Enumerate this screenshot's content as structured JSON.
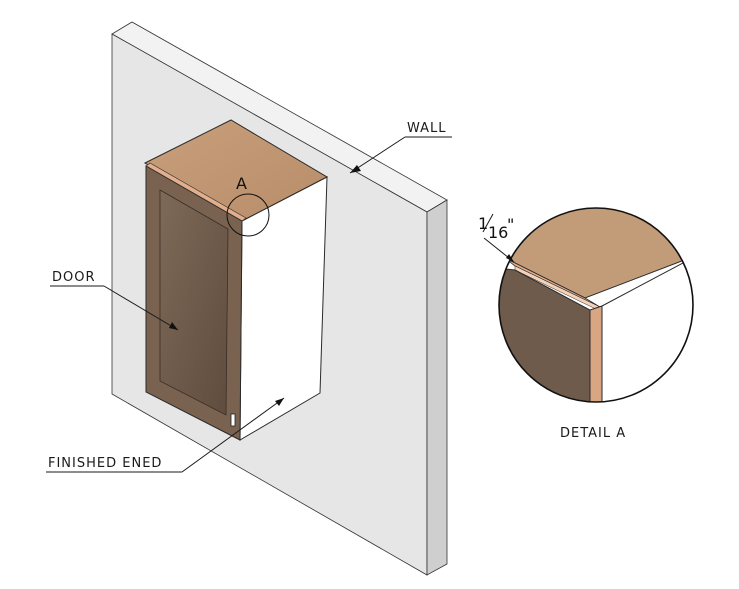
{
  "labels": {
    "wall": "WALL",
    "door": "DOOR",
    "finished_end": "FINISHED ENED",
    "detail_marker": "A",
    "detail_caption": "DETAIL A",
    "gap_whole": "1",
    "gap_fraction": "16",
    "gap_inch": "\""
  },
  "colors": {
    "wall_face": "#e6e6e6",
    "wall_side": "#cfcfcf",
    "wall_top": "#f2f2f2",
    "cabinet_top": "#c19672",
    "cabinet_side": "#ffffff",
    "door_frame": "#7a6250",
    "door_panel": "#6e5a4a",
    "door_edge": "#e0a888",
    "line": "#1a1a1a"
  }
}
